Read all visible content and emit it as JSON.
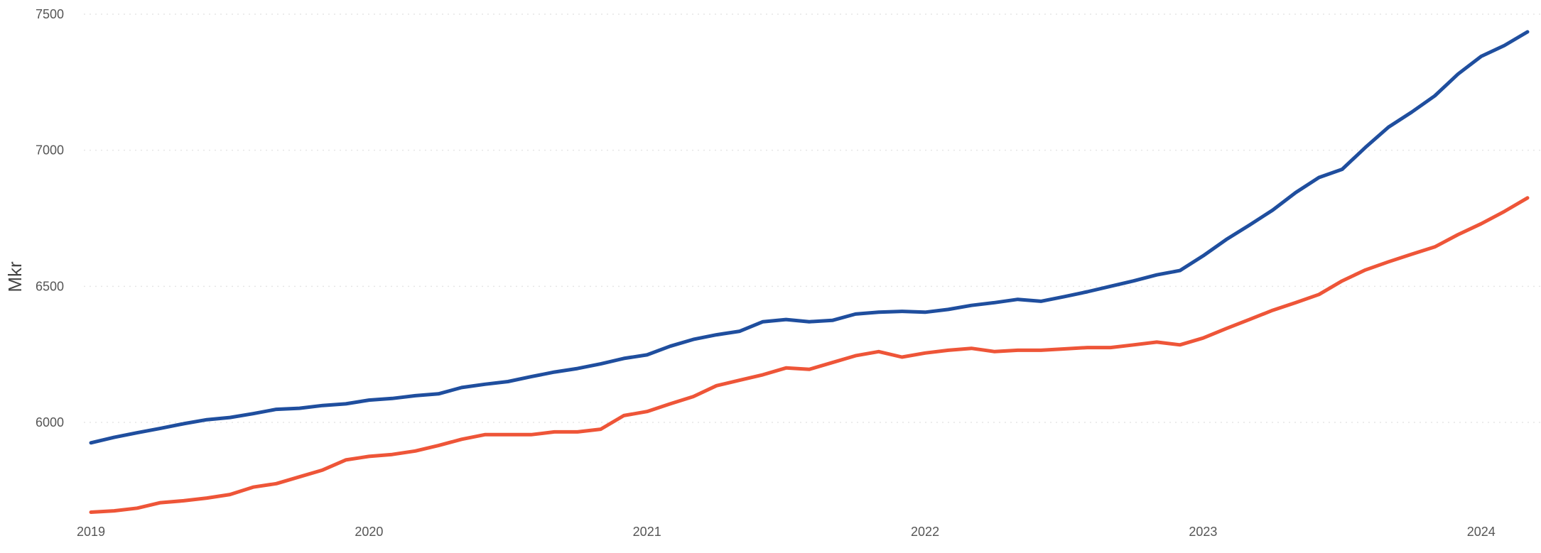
{
  "chart_data": {
    "type": "line",
    "title": "",
    "xlabel": "",
    "ylabel": "Mkr",
    "ylim": [
      5700,
      7500
    ],
    "yticks": [
      6000,
      6500,
      7000,
      7500
    ],
    "xticks": [
      "2019",
      "2020",
      "2021",
      "2022",
      "2023",
      "2024"
    ],
    "grid": true,
    "legend": "none",
    "x": [
      "2019-01",
      "2019-02",
      "2019-03",
      "2019-04",
      "2019-05",
      "2019-06",
      "2019-07",
      "2019-08",
      "2019-09",
      "2019-10",
      "2019-11",
      "2019-12",
      "2020-01",
      "2020-02",
      "2020-03",
      "2020-04",
      "2020-05",
      "2020-06",
      "2020-07",
      "2020-08",
      "2020-09",
      "2020-10",
      "2020-11",
      "2020-12",
      "2021-01",
      "2021-02",
      "2021-03",
      "2021-04",
      "2021-05",
      "2021-06",
      "2021-07",
      "2021-08",
      "2021-09",
      "2021-10",
      "2021-11",
      "2021-12",
      "2022-01",
      "2022-02",
      "2022-03",
      "2022-04",
      "2022-05",
      "2022-06",
      "2022-07",
      "2022-08",
      "2022-09",
      "2022-10",
      "2022-11",
      "2022-12",
      "2023-01",
      "2023-02",
      "2023-03",
      "2023-04",
      "2023-05",
      "2023-06",
      "2023-07",
      "2023-08",
      "2023-09",
      "2023-10",
      "2023-11",
      "2023-12",
      "2024-01",
      "2024-02",
      "2024-03"
    ],
    "series": [
      {
        "color": "#1f4e9e",
        "values": [
          5925,
          5945,
          5962,
          5978,
          5995,
          6010,
          6018,
          6032,
          6048,
          6052,
          6062,
          6068,
          6082,
          6088,
          6098,
          6105,
          6128,
          6140,
          6150,
          6168,
          6185,
          6198,
          6215,
          6235,
          6248,
          6280,
          6305,
          6322,
          6335,
          6370,
          6378,
          6370,
          6375,
          6398,
          6405,
          6408,
          6405,
          6415,
          6430,
          6440,
          6452,
          6445,
          6462,
          6480,
          6500,
          6520,
          6542,
          6558,
          6612,
          6672,
          6725,
          6780,
          6845,
          6900,
          6930,
          7010,
          7085,
          7140,
          7200,
          7280,
          7345,
          7385,
          7435
        ]
      },
      {
        "color": "#ee5538",
        "values": [
          5670,
          5675,
          5685,
          5705,
          5712,
          5722,
          5735,
          5762,
          5775,
          5800,
          5825,
          5862,
          5875,
          5882,
          5895,
          5915,
          5938,
          5955,
          5955,
          5955,
          5965,
          5965,
          5975,
          6025,
          6040,
          6068,
          6095,
          6135,
          6155,
          6175,
          6200,
          6195,
          6220,
          6245,
          6260,
          6240,
          6255,
          6265,
          6272,
          6260,
          6265,
          6265,
          6270,
          6275,
          6275,
          6285,
          6295,
          6285,
          6310,
          6345,
          6378,
          6412,
          6440,
          6470,
          6520,
          6560,
          6590,
          6618,
          6645,
          6690,
          6730,
          6775,
          6825
        ]
      }
    ]
  }
}
